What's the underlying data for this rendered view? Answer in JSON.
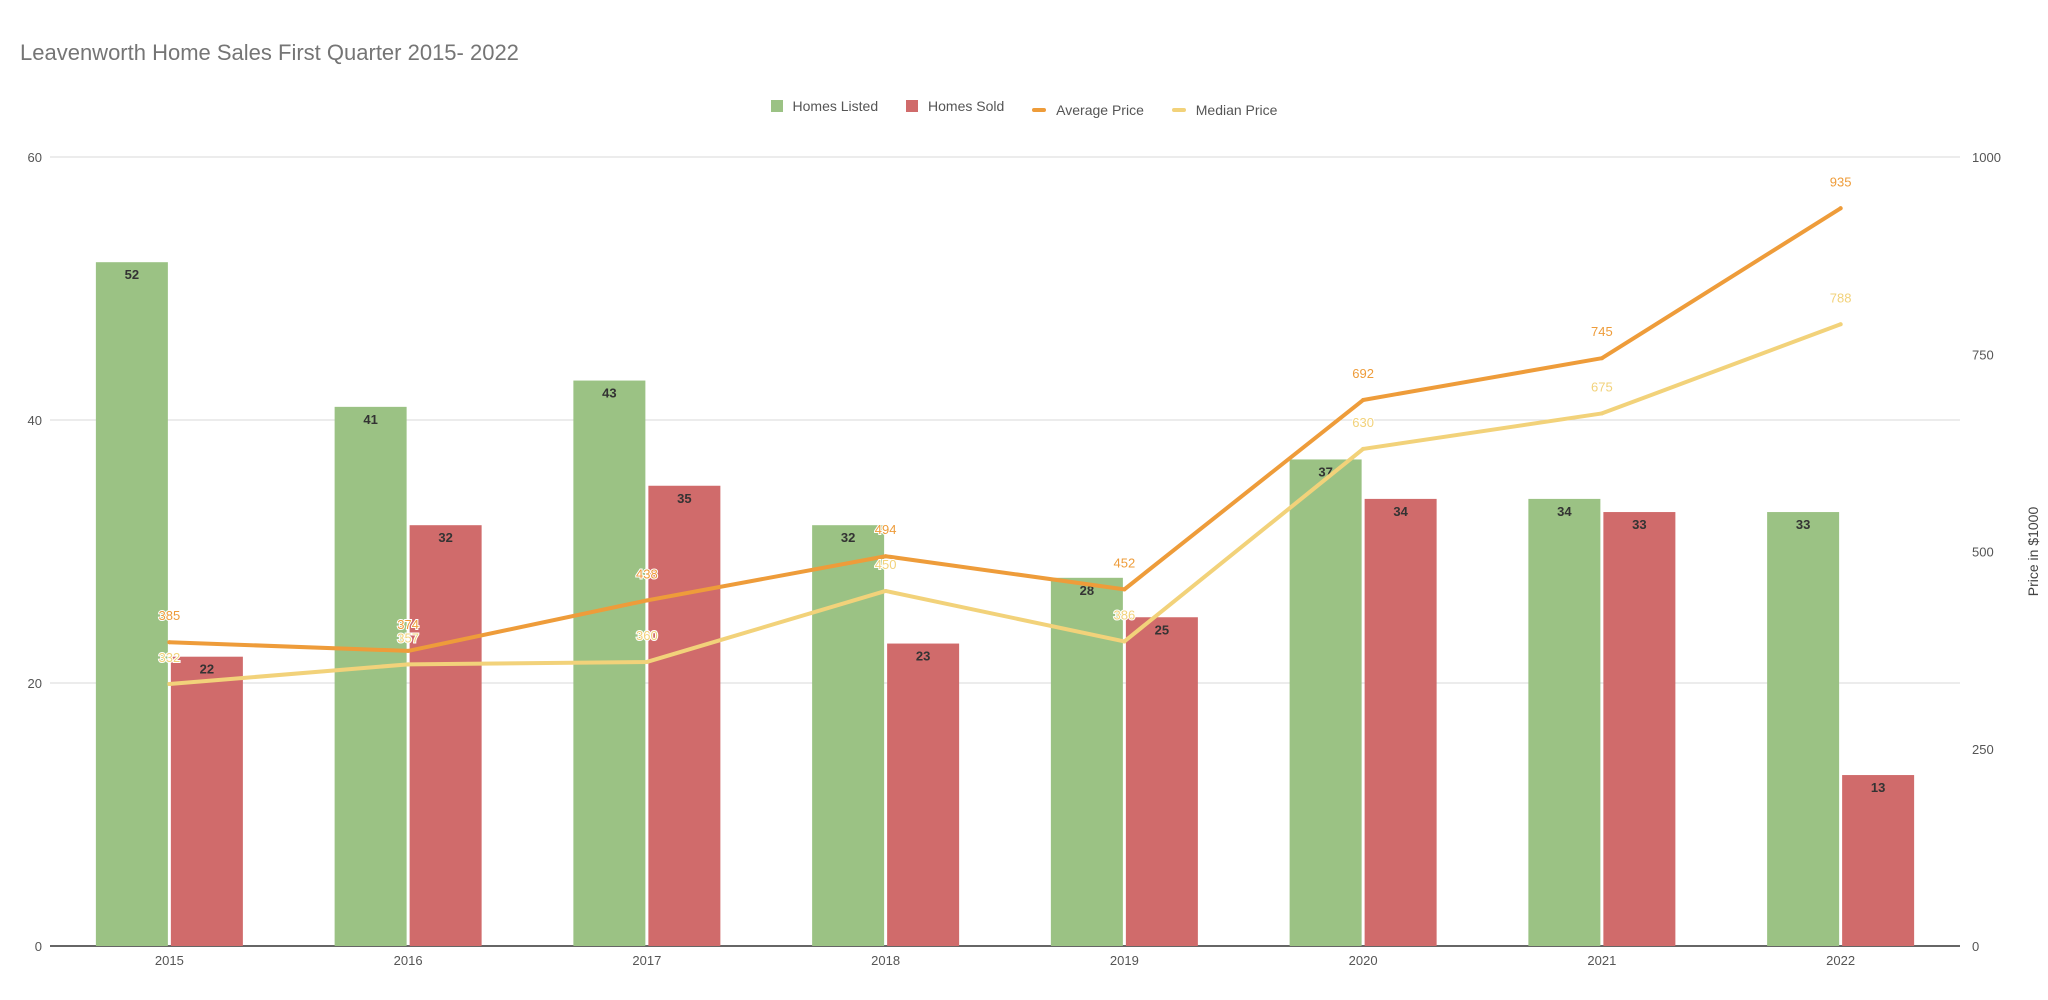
{
  "chart_data": {
    "type": "bar",
    "title": "Leavenworth Home Sales First Quarter 2015- 2022",
    "categories": [
      "2015",
      "2016",
      "2017",
      "2018",
      "2019",
      "2020",
      "2021",
      "2022"
    ],
    "series": [
      {
        "name": "Homes Listed",
        "kind": "bar",
        "axis": "left",
        "color": "#9bc284",
        "values": [
          52,
          41,
          43,
          32,
          28,
          37,
          34,
          33
        ]
      },
      {
        "name": "Homes Sold",
        "kind": "bar",
        "axis": "left",
        "color": "#d06b6b",
        "values": [
          22,
          32,
          35,
          23,
          25,
          34,
          33,
          13
        ]
      },
      {
        "name": "Average Price",
        "kind": "line",
        "axis": "right",
        "color": "#ee9c3a",
        "values": [
          385,
          374,
          438,
          494,
          452,
          692,
          745,
          935
        ]
      },
      {
        "name": "Median Price",
        "kind": "line",
        "axis": "right",
        "color": "#f2d27a",
        "values": [
          332,
          357,
          360,
          450,
          386,
          630,
          675,
          788
        ]
      }
    ],
    "left_axis": {
      "min": 0,
      "max": 60,
      "ticks": [
        "0",
        "20",
        "40",
        "60"
      ]
    },
    "right_axis": {
      "min": 0,
      "max": 1000,
      "ticks": [
        "0",
        "250",
        "500",
        "750",
        "1000"
      ],
      "label": "Price in $1000"
    },
    "xlabel": "",
    "ylabel": "",
    "grid": true,
    "legend_position": "top"
  }
}
